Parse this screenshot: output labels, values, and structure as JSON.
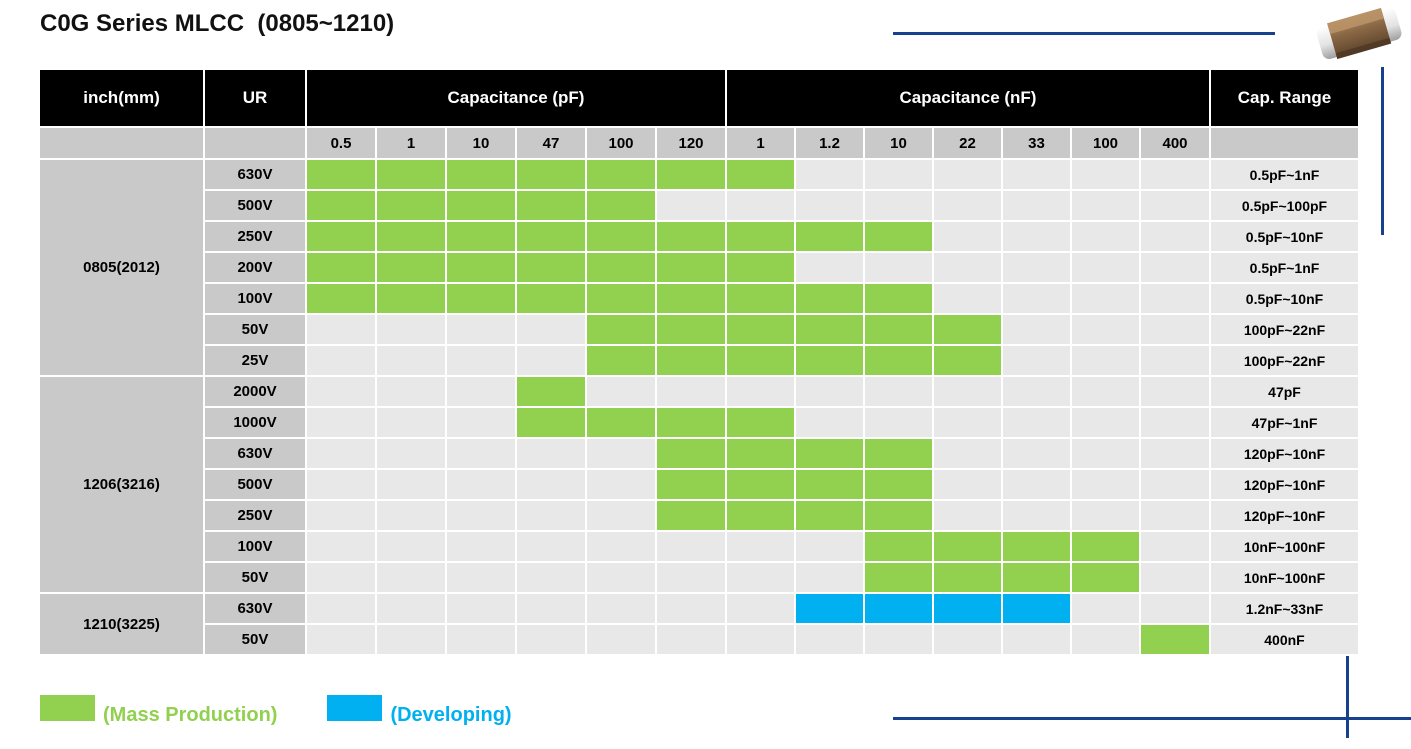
{
  "title": "C0G Series MLCC  (0805~1210)",
  "colors": {
    "mass_production": "#92d050",
    "developing": "#00b0f0",
    "navy_rule": "#16418f",
    "header_bg": "#000000",
    "label_bg": "#c9c9c9",
    "empty_cell_bg": "#e8e8e8"
  },
  "table": {
    "headers": {
      "inch": "inch(mm)",
      "ur": "UR",
      "cap_pf": "Capacitance (pF)",
      "cap_nf": "Capacitance (nF)",
      "cap_range": "Cap. Range"
    },
    "pf_columns": [
      "0.5",
      "1",
      "10",
      "47",
      "100",
      "120"
    ],
    "nf_columns": [
      "1",
      "1.2",
      "10",
      "22",
      "33",
      "100",
      "400"
    ],
    "cell_states": {
      "M": "mass_production",
      "D": "developing",
      "": "none"
    },
    "groups": [
      {
        "size": "0805(2012)",
        "rows": [
          {
            "ur": "630V",
            "cells": [
              "M",
              "M",
              "M",
              "M",
              "M",
              "M",
              "M",
              "",
              "",
              "",
              "",
              "",
              ""
            ],
            "range": "0.5pF~1nF"
          },
          {
            "ur": "500V",
            "cells": [
              "M",
              "M",
              "M",
              "M",
              "M",
              "",
              "",
              "",
              "",
              "",
              "",
              "",
              ""
            ],
            "range": "0.5pF~100pF"
          },
          {
            "ur": "250V",
            "cells": [
              "M",
              "M",
              "M",
              "M",
              "M",
              "M",
              "M",
              "M",
              "M",
              "",
              "",
              "",
              ""
            ],
            "range": "0.5pF~10nF"
          },
          {
            "ur": "200V",
            "cells": [
              "M",
              "M",
              "M",
              "M",
              "M",
              "M",
              "M",
              "",
              "",
              "",
              "",
              "",
              ""
            ],
            "range": "0.5pF~1nF"
          },
          {
            "ur": "100V",
            "cells": [
              "M",
              "M",
              "M",
              "M",
              "M",
              "M",
              "M",
              "M",
              "M",
              "",
              "",
              "",
              ""
            ],
            "range": "0.5pF~10nF"
          },
          {
            "ur": "50V",
            "cells": [
              "",
              "",
              "",
              "",
              "M",
              "M",
              "M",
              "M",
              "M",
              "M",
              "",
              "",
              ""
            ],
            "range": "100pF~22nF"
          },
          {
            "ur": "25V",
            "cells": [
              "",
              "",
              "",
              "",
              "M",
              "M",
              "M",
              "M",
              "M",
              "M",
              "",
              "",
              ""
            ],
            "range": "100pF~22nF"
          }
        ]
      },
      {
        "size": "1206(3216)",
        "rows": [
          {
            "ur": "2000V",
            "cells": [
              "",
              "",
              "",
              "M",
              "",
              "",
              "",
              "",
              "",
              "",
              "",
              "",
              ""
            ],
            "range": "47pF"
          },
          {
            "ur": "1000V",
            "cells": [
              "",
              "",
              "",
              "M",
              "M",
              "M",
              "M",
              "",
              "",
              "",
              "",
              "",
              ""
            ],
            "range": "47pF~1nF"
          },
          {
            "ur": "630V",
            "cells": [
              "",
              "",
              "",
              "",
              "",
              "M",
              "M",
              "M",
              "M",
              "",
              "",
              "",
              ""
            ],
            "range": "120pF~10nF"
          },
          {
            "ur": "500V",
            "cells": [
              "",
              "",
              "",
              "",
              "",
              "M",
              "M",
              "M",
              "M",
              "",
              "",
              "",
              ""
            ],
            "range": "120pF~10nF"
          },
          {
            "ur": "250V",
            "cells": [
              "",
              "",
              "",
              "",
              "",
              "M",
              "M",
              "M",
              "M",
              "",
              "",
              "",
              ""
            ],
            "range": "120pF~10nF"
          },
          {
            "ur": "100V",
            "cells": [
              "",
              "",
              "",
              "",
              "",
              "",
              "",
              "",
              "M",
              "M",
              "M",
              "M",
              ""
            ],
            "range": "10nF~100nF"
          },
          {
            "ur": "50V",
            "cells": [
              "",
              "",
              "",
              "",
              "",
              "",
              "",
              "",
              "M",
              "M",
              "M",
              "M",
              ""
            ],
            "range": "10nF~100nF"
          }
        ]
      },
      {
        "size": "1210(3225)",
        "rows": [
          {
            "ur": "630V",
            "cells": [
              "",
              "",
              "",
              "",
              "",
              "",
              "",
              "D",
              "D",
              "D",
              "D",
              "",
              ""
            ],
            "range": "1.2nF~33nF"
          },
          {
            "ur": "50V",
            "cells": [
              "",
              "",
              "",
              "",
              "",
              "",
              "",
              "",
              "",
              "",
              "",
              "",
              "M"
            ],
            "range": "400nF"
          }
        ]
      }
    ]
  },
  "legend": {
    "mass_production_label": "(Mass Production)",
    "developing_label": "(Developing)"
  }
}
